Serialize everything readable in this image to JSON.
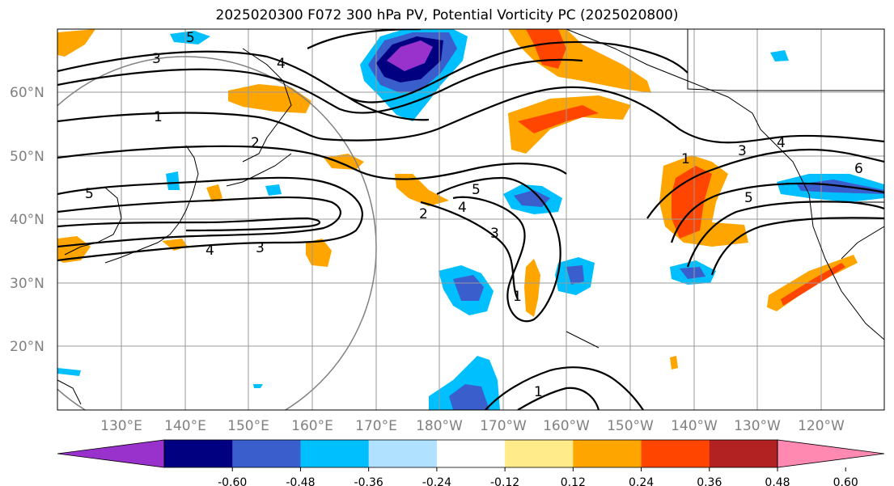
{
  "title": "2025020300 F072 300 hPa PV, Potential Vorticity PC (2025020800)",
  "map": {
    "lon_labels": [
      "130°E",
      "140°E",
      "150°E",
      "160°E",
      "170°E",
      "180°W",
      "170°W",
      "160°W",
      "150°W",
      "140°W",
      "130°W",
      "120°W"
    ],
    "lat_labels": [
      "60°N",
      "50°N",
      "40°N",
      "30°N",
      "20°N"
    ],
    "contour_labels": [
      "3",
      "4",
      "5",
      "1",
      "2",
      "5",
      "3",
      "4",
      "2",
      "5",
      "4",
      "3",
      "1",
      "1",
      "3",
      "4",
      "5",
      "6",
      "1"
    ]
  },
  "colorbar": {
    "ticks": [
      "-0.60",
      "-0.48",
      "-0.36",
      "-0.24",
      "-0.12",
      "0.12",
      "0.24",
      "0.36",
      "0.48",
      "0.60"
    ],
    "colors": [
      "#9932cc",
      "#000080",
      "#3a5fcd",
      "#00bfff",
      "#b0e2ff",
      "#ffffff",
      "#ffeb8a",
      "#ffa500",
      "#ff4500",
      "#b22222",
      "#ff89b0"
    ]
  }
}
